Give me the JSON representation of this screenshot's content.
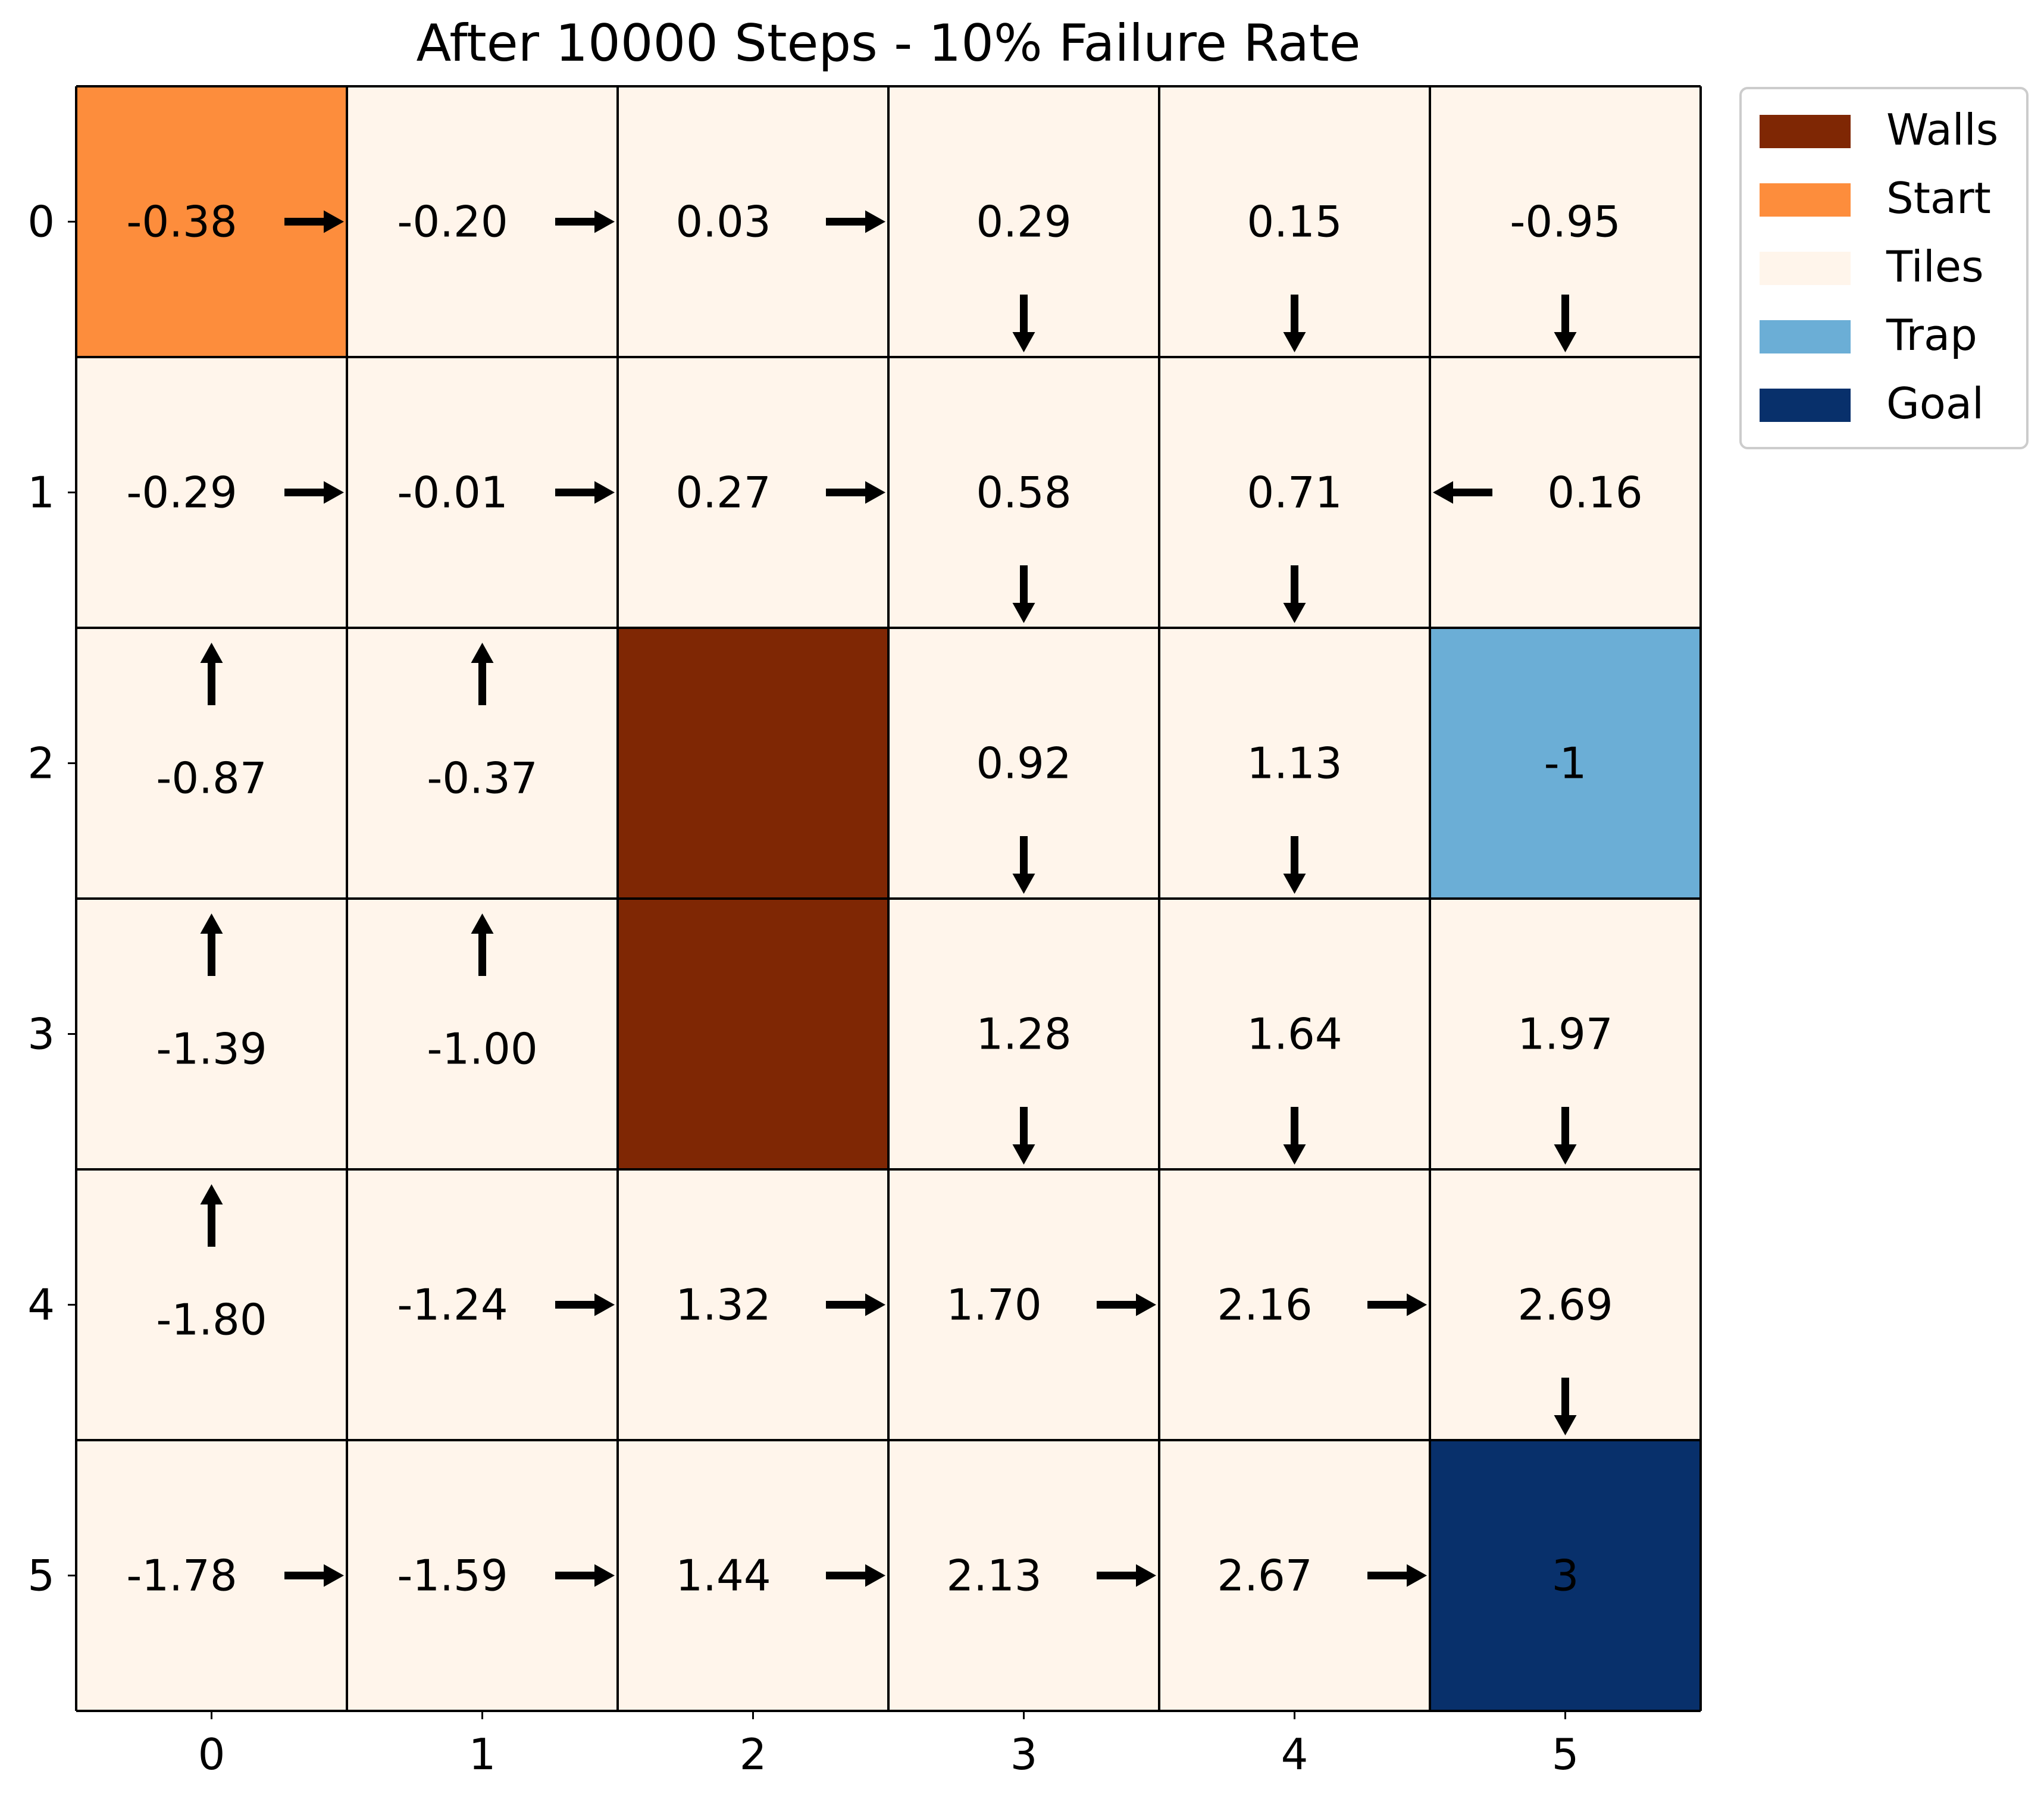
{
  "chart_data": {
    "type": "heatmap",
    "title": "After 10000 Steps - 10% Failure Rate",
    "xlabel": "",
    "ylabel": "",
    "x_ticks": [
      "0",
      "1",
      "2",
      "3",
      "4",
      "5"
    ],
    "y_ticks": [
      "0",
      "1",
      "2",
      "3",
      "4",
      "5"
    ],
    "grid": true,
    "legend_position": "outside upper-right",
    "legend": [
      {
        "label": "Walls",
        "color": "#7f2704"
      },
      {
        "label": "Start",
        "color": "#fd8d3c"
      },
      {
        "label": "Tiles",
        "color": "#fff5eb"
      },
      {
        "label": "Trap",
        "color": "#6baed6"
      },
      {
        "label": "Goal",
        "color": "#08306b"
      }
    ],
    "cell_types": [
      [
        "Start",
        "Tiles",
        "Tiles",
        "Tiles",
        "Tiles",
        "Tiles"
      ],
      [
        "Tiles",
        "Tiles",
        "Tiles",
        "Tiles",
        "Tiles",
        "Tiles"
      ],
      [
        "Tiles",
        "Tiles",
        "Walls",
        "Tiles",
        "Tiles",
        "Trap"
      ],
      [
        "Tiles",
        "Tiles",
        "Walls",
        "Tiles",
        "Tiles",
        "Tiles"
      ],
      [
        "Tiles",
        "Tiles",
        "Tiles",
        "Tiles",
        "Tiles",
        "Tiles"
      ],
      [
        "Tiles",
        "Tiles",
        "Tiles",
        "Tiles",
        "Tiles",
        "Goal"
      ]
    ],
    "values": [
      [
        "-0.38",
        "-0.20",
        "0.03",
        "0.29",
        "0.15",
        "-0.95"
      ],
      [
        "-0.29",
        "-0.01",
        "0.27",
        "0.58",
        "0.71",
        "0.16"
      ],
      [
        "-0.87",
        "-0.37",
        "",
        "0.92",
        "1.13",
        "-1"
      ],
      [
        "-1.39",
        "-1.00",
        "",
        "1.28",
        "1.64",
        "1.97"
      ],
      [
        "-1.80",
        "-1.24",
        "1.32",
        "1.70",
        "2.16",
        "2.69"
      ],
      [
        "-1.78",
        "-1.59",
        "1.44",
        "2.13",
        "2.67",
        "3"
      ]
    ],
    "policy": [
      [
        "right",
        "right",
        "right",
        "down",
        "down",
        "down"
      ],
      [
        "right",
        "right",
        "right",
        "down",
        "down",
        "left"
      ],
      [
        "up",
        "up",
        "",
        "down",
        "down",
        ""
      ],
      [
        "up",
        "up",
        "",
        "down",
        "down",
        "down"
      ],
      [
        "up",
        "right",
        "right",
        "right",
        "right",
        "down"
      ],
      [
        "right",
        "right",
        "right",
        "right",
        "right",
        ""
      ]
    ]
  }
}
